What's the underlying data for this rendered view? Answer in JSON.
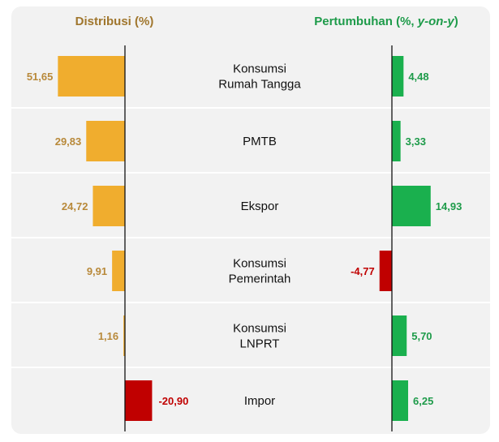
{
  "headers": {
    "left": "Distribusi (%)",
    "right_main": "Pertumbuhan (%, ",
    "right_italic": "y-on-y",
    "right_close": ")"
  },
  "colors": {
    "left_header": "#a0762d",
    "right_header": "#1e9b4a",
    "dist_bar": "#f0ad2e",
    "dist_label": "#b8893a",
    "growth_bar": "#1ab04e",
    "growth_label": "#1e9b4a",
    "negative_bar": "#c00000",
    "negative_label": "#c00000",
    "separator": "#ffffff",
    "axis": "#111111"
  },
  "chart_data": [
    {
      "type": "bar",
      "orientation": "horizontal",
      "title": "Distribusi (%)",
      "categories": [
        [
          "Konsumsi",
          "Rumah Tangga"
        ],
        [
          "PMTB"
        ],
        [
          "Ekspor"
        ],
        [
          "Konsumsi",
          "Pemerintah"
        ],
        [
          "Konsumsi",
          "LNPRT"
        ],
        [
          "Impor"
        ]
      ],
      "values": [
        51.65,
        29.83,
        24.72,
        9.91,
        1.16,
        -20.9
      ],
      "labels": [
        "51,65",
        "29,83",
        "24,72",
        "9,91",
        "1,16",
        "-20,90"
      ]
    },
    {
      "type": "bar",
      "orientation": "horizontal",
      "title": "Pertumbuhan (%, y-on-y)",
      "categories": [
        [
          "Konsumsi",
          "Rumah Tangga"
        ],
        [
          "PMTB"
        ],
        [
          "Ekspor"
        ],
        [
          "Konsumsi",
          "Pemerintah"
        ],
        [
          "Konsumsi",
          "LNPRT"
        ],
        [
          "Impor"
        ]
      ],
      "values": [
        4.48,
        3.33,
        14.93,
        -4.77,
        5.7,
        6.25
      ],
      "labels": [
        "4,48",
        "3,33",
        "14,93",
        "-4,77",
        "5,70",
        "6,25"
      ]
    }
  ]
}
